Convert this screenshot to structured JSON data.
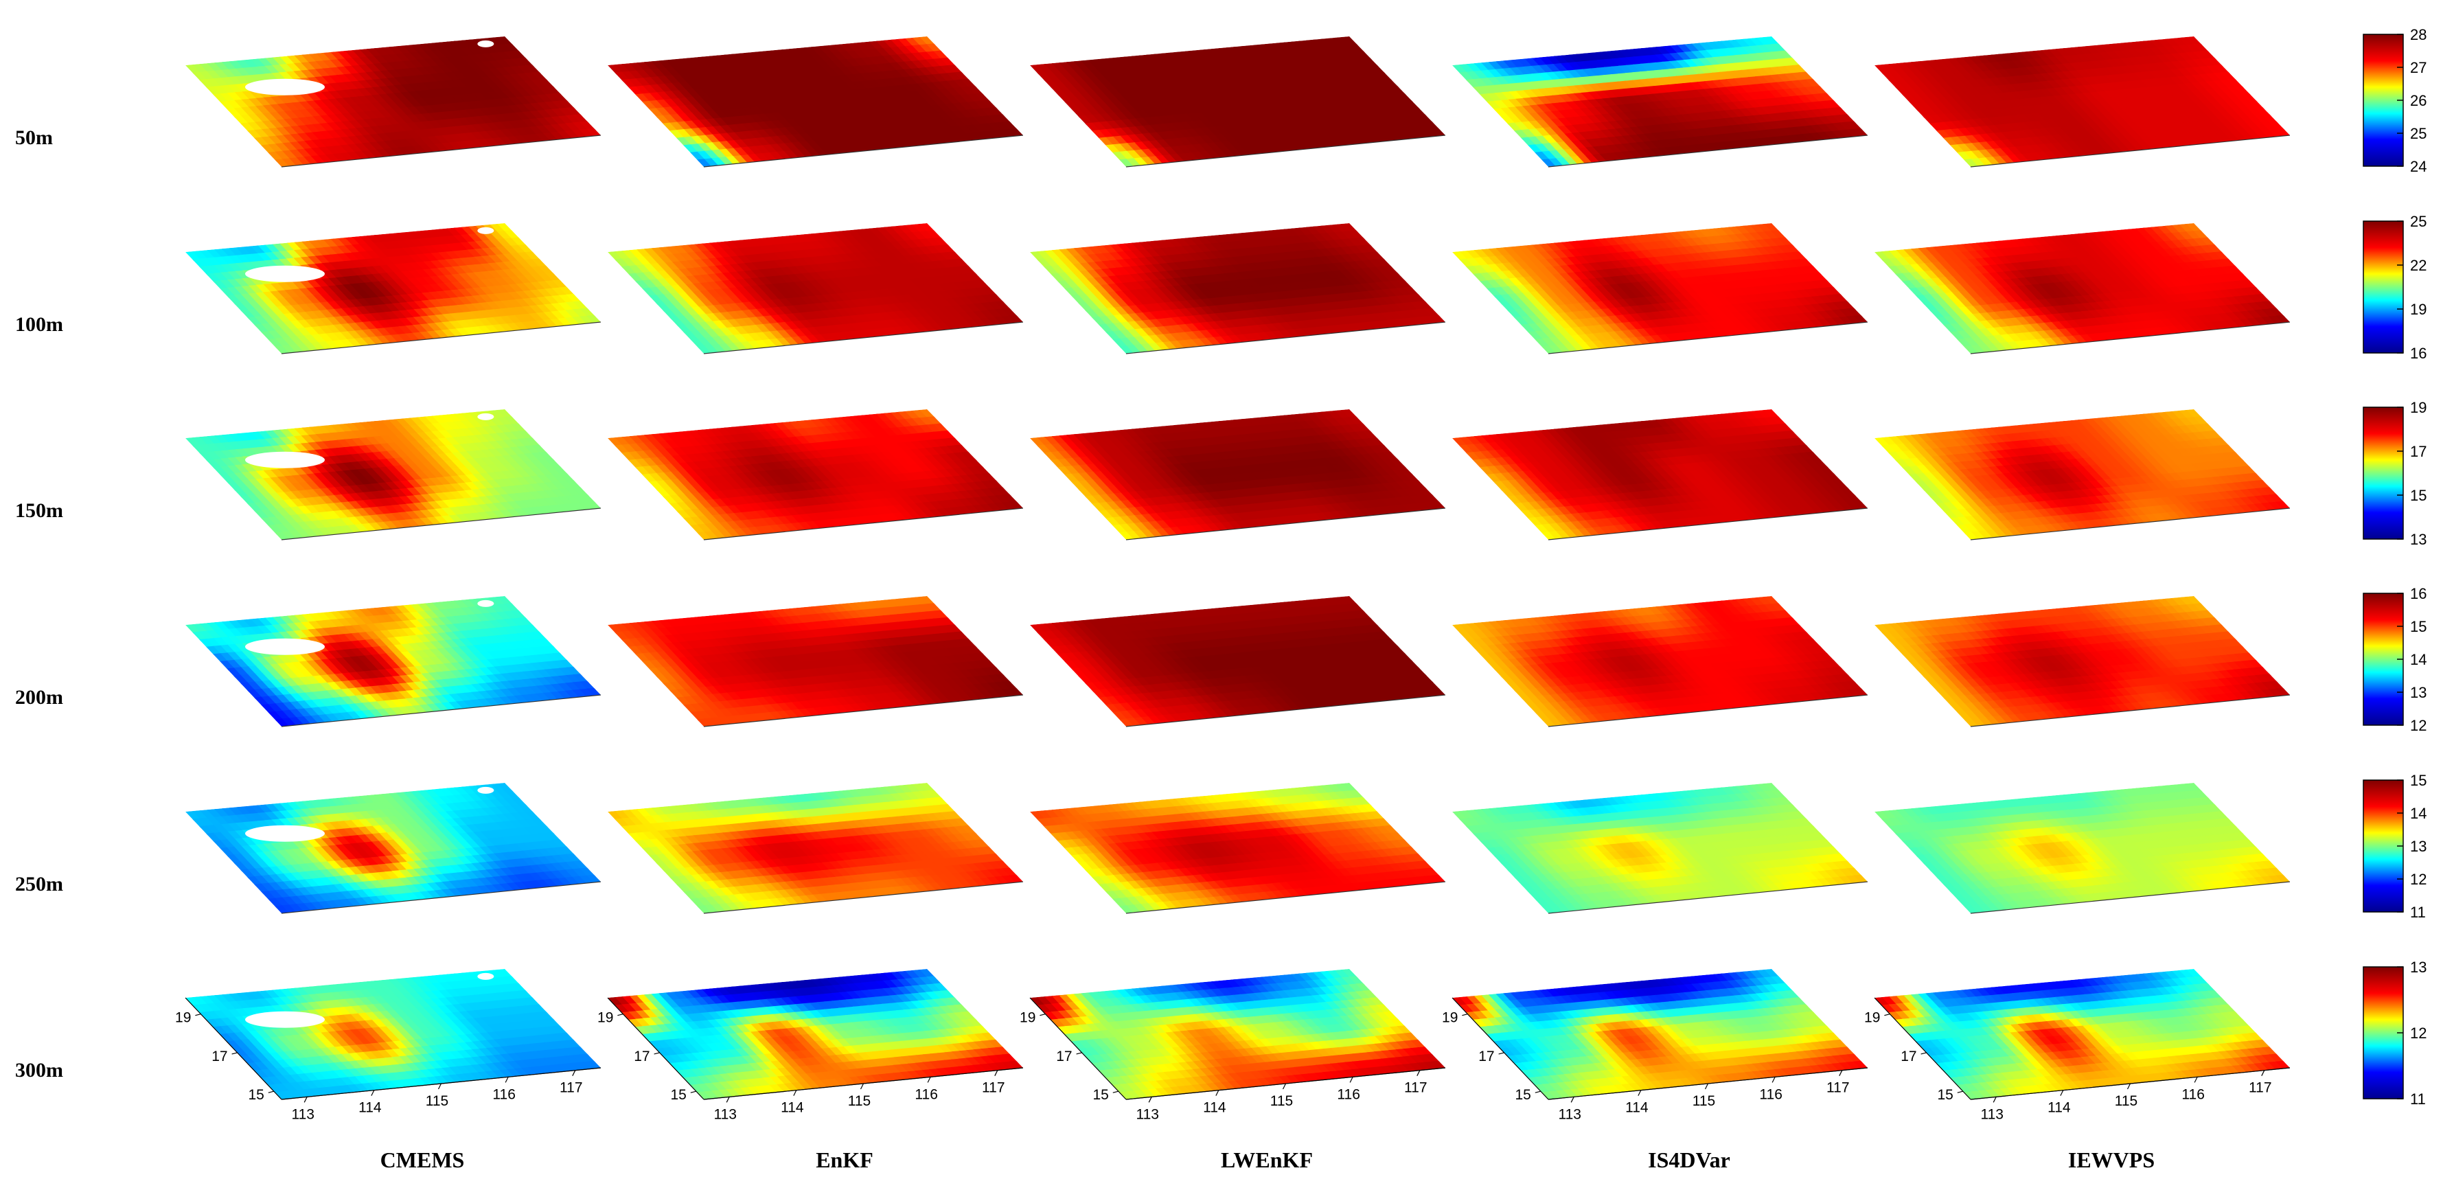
{
  "chart_data": {
    "type": "heatmap",
    "title": "",
    "methods": [
      "CMEMS",
      "EnKF",
      "LWEnKF",
      "IS4DVar",
      "IEWVPS"
    ],
    "depths": [
      "50m",
      "100m",
      "150m",
      "200m",
      "250m",
      "300m"
    ],
    "x_ticks": [
      "113",
      "114",
      "115",
      "116",
      "117"
    ],
    "y_ticks": [
      "15",
      "17",
      "19"
    ],
    "colormap": [
      "#00008f",
      "#0000ff",
      "#00ffff",
      "#ffff00",
      "#ff0000",
      "#800000"
    ],
    "land_color": "#ffffff",
    "colorbars": [
      {
        "depth": "50m",
        "min": 24,
        "max": 28,
        "ticks": [
          "24",
          "25",
          "26",
          "27",
          "28"
        ]
      },
      {
        "depth": "100m",
        "min": 16,
        "max": 25,
        "ticks": [
          "16",
          "19",
          "22",
          "25"
        ]
      },
      {
        "depth": "150m",
        "min": 13,
        "max": 19,
        "ticks": [
          "13",
          "15",
          "17",
          "19"
        ]
      },
      {
        "depth": "200m",
        "min": 12,
        "max": 16,
        "ticks": [
          "12",
          "13",
          "14",
          "15",
          "16"
        ]
      },
      {
        "depth": "250m",
        "min": 11,
        "max": 15,
        "ticks": [
          "11",
          "12",
          "13",
          "14",
          "15"
        ]
      },
      {
        "depth": "300m",
        "min": 11,
        "max": 13,
        "ticks": [
          "11",
          "12",
          "13"
        ]
      }
    ],
    "fields": {
      "50m": {
        "CMEMS": [
          [
            0.55,
            0.45,
            0.7,
            0.95,
            1.0,
            1.0
          ],
          [
            0.6,
            0.75,
            0.9,
            1.0,
            1.0,
            0.95
          ],
          [
            0.7,
            0.85,
            0.95,
            0.9,
            0.95,
            0.85
          ]
        ],
        "EnKF": [
          [
            0.9,
            1.0,
            1.0,
            1.0,
            0.95,
            0.7
          ],
          [
            0.7,
            1.0,
            1.0,
            1.0,
            1.0,
            0.95
          ],
          [
            0.3,
            0.85,
            1.0,
            1.0,
            1.0,
            1.0
          ]
        ],
        "LWEnKF": [
          [
            0.9,
            1.0,
            1.0,
            1.0,
            1.0,
            1.0
          ],
          [
            0.9,
            1.0,
            1.0,
            1.0,
            1.0,
            1.0
          ],
          [
            0.5,
            0.95,
            1.0,
            1.0,
            1.0,
            1.0
          ]
        ],
        "IS4DVar": [
          [
            0.45,
            0.25,
            0.05,
            0.1,
            0.35,
            0.4
          ],
          [
            0.6,
            0.8,
            0.95,
            0.9,
            0.8,
            0.75
          ],
          [
            0.3,
            0.95,
            1.0,
            1.0,
            1.0,
            0.95
          ]
        ],
        "IEWVPS": [
          [
            0.85,
            0.9,
            0.97,
            0.9,
            0.88,
            0.85
          ],
          [
            0.85,
            0.9,
            0.9,
            0.85,
            0.85,
            0.8
          ],
          [
            0.55,
            0.85,
            0.9,
            0.85,
            0.85,
            0.8
          ]
        ]
      },
      "100m": {
        "CMEMS": [
          [
            0.4,
            0.35,
            0.7,
            0.85,
            0.85,
            0.6
          ],
          [
            0.45,
            0.7,
            1.0,
            0.8,
            0.7,
            0.65
          ],
          [
            0.5,
            0.6,
            0.75,
            0.6,
            0.65,
            0.55
          ]
        ],
        "EnKF": [
          [
            0.55,
            0.7,
            0.85,
            0.85,
            0.9,
            0.8
          ],
          [
            0.45,
            0.75,
            0.95,
            0.9,
            0.9,
            0.9
          ],
          [
            0.45,
            0.6,
            0.85,
            0.85,
            0.9,
            0.95
          ]
        ],
        "LWEnKF": [
          [
            0.55,
            0.75,
            0.9,
            0.95,
            0.95,
            0.9
          ],
          [
            0.5,
            0.85,
            1.0,
            1.0,
            1.0,
            0.95
          ],
          [
            0.45,
            0.7,
            0.85,
            0.9,
            0.9,
            0.9
          ]
        ],
        "IS4DVar": [
          [
            0.6,
            0.7,
            0.8,
            0.75,
            0.7,
            0.75
          ],
          [
            0.45,
            0.7,
            0.95,
            0.8,
            0.8,
            0.8
          ],
          [
            0.5,
            0.65,
            0.8,
            0.8,
            0.85,
            0.95
          ]
        ],
        "IEWVPS": [
          [
            0.55,
            0.75,
            0.8,
            0.85,
            0.8,
            0.7
          ],
          [
            0.45,
            0.75,
            0.95,
            0.85,
            0.8,
            0.8
          ],
          [
            0.5,
            0.6,
            0.8,
            0.8,
            0.85,
            0.95
          ]
        ]
      },
      "150m": {
        "CMEMS": [
          [
            0.45,
            0.4,
            0.65,
            0.7,
            0.6,
            0.55
          ],
          [
            0.45,
            0.7,
            1.0,
            0.7,
            0.55,
            0.5
          ],
          [
            0.5,
            0.55,
            0.7,
            0.55,
            0.5,
            0.5
          ]
        ],
        "EnKF": [
          [
            0.7,
            0.8,
            0.85,
            0.75,
            0.8,
            0.7
          ],
          [
            0.6,
            0.85,
            0.95,
            0.85,
            0.8,
            0.9
          ],
          [
            0.65,
            0.75,
            0.8,
            0.8,
            0.9,
            0.95
          ]
        ],
        "LWEnKF": [
          [
            0.7,
            0.9,
            0.95,
            0.95,
            0.95,
            0.9
          ],
          [
            0.65,
            0.9,
            1.0,
            1.0,
            1.0,
            0.95
          ],
          [
            0.6,
            0.8,
            0.9,
            0.9,
            0.95,
            0.95
          ]
        ],
        "IS4DVar": [
          [
            0.75,
            0.85,
            0.95,
            0.95,
            0.85,
            0.8
          ],
          [
            0.65,
            0.85,
            0.95,
            0.85,
            0.9,
            0.95
          ],
          [
            0.6,
            0.75,
            0.85,
            0.85,
            0.9,
            0.95
          ]
        ],
        "IEWVPS": [
          [
            0.6,
            0.7,
            0.75,
            0.75,
            0.7,
            0.65
          ],
          [
            0.55,
            0.75,
            0.9,
            0.75,
            0.7,
            0.7
          ],
          [
            0.6,
            0.7,
            0.75,
            0.7,
            0.75,
            0.8
          ]
        ]
      },
      "200m": {
        "CMEMS": [
          [
            0.45,
            0.35,
            0.6,
            0.7,
            0.5,
            0.45
          ],
          [
            0.25,
            0.6,
            0.95,
            0.55,
            0.4,
            0.4
          ],
          [
            0.2,
            0.35,
            0.55,
            0.35,
            0.3,
            0.25
          ]
        ],
        "EnKF": [
          [
            0.75,
            0.8,
            0.8,
            0.75,
            0.7,
            0.7
          ],
          [
            0.7,
            0.85,
            0.9,
            0.9,
            0.95,
            0.95
          ],
          [
            0.75,
            0.75,
            0.8,
            0.85,
            0.95,
            1.0
          ]
        ],
        "LWEnKF": [
          [
            0.85,
            0.95,
            0.95,
            0.95,
            0.95,
            0.95
          ],
          [
            0.8,
            0.95,
            1.0,
            1.0,
            1.0,
            1.0
          ],
          [
            0.75,
            0.85,
            0.95,
            1.0,
            1.0,
            1.0
          ]
        ],
        "IS4DVar": [
          [
            0.65,
            0.7,
            0.75,
            0.7,
            0.8,
            0.75
          ],
          [
            0.65,
            0.8,
            0.9,
            0.8,
            0.8,
            0.85
          ],
          [
            0.65,
            0.75,
            0.8,
            0.8,
            0.85,
            0.9
          ]
        ],
        "IEWVPS": [
          [
            0.65,
            0.7,
            0.75,
            0.75,
            0.7,
            0.65
          ],
          [
            0.65,
            0.8,
            0.9,
            0.8,
            0.75,
            0.75
          ],
          [
            0.65,
            0.75,
            0.8,
            0.75,
            0.8,
            0.9
          ]
        ]
      },
      "250m": {
        "CMEMS": [
          [
            0.35,
            0.3,
            0.45,
            0.5,
            0.4,
            0.35
          ],
          [
            0.3,
            0.5,
            0.85,
            0.5,
            0.35,
            0.35
          ],
          [
            0.25,
            0.3,
            0.4,
            0.3,
            0.25,
            0.3
          ]
        ],
        "EnKF": [
          [
            0.65,
            0.55,
            0.5,
            0.45,
            0.5,
            0.55
          ],
          [
            0.55,
            0.75,
            0.85,
            0.8,
            0.75,
            0.7
          ],
          [
            0.5,
            0.6,
            0.7,
            0.7,
            0.75,
            0.8
          ]
        ],
        "LWEnKF": [
          [
            0.75,
            0.7,
            0.65,
            0.6,
            0.55,
            0.5
          ],
          [
            0.6,
            0.8,
            0.9,
            0.85,
            0.75,
            0.7
          ],
          [
            0.5,
            0.65,
            0.75,
            0.8,
            0.8,
            0.8
          ]
        ],
        "IS4DVar": [
          [
            0.5,
            0.45,
            0.35,
            0.4,
            0.45,
            0.5
          ],
          [
            0.45,
            0.55,
            0.65,
            0.55,
            0.55,
            0.55
          ],
          [
            0.45,
            0.5,
            0.55,
            0.55,
            0.6,
            0.65
          ]
        ],
        "IEWVPS": [
          [
            0.5,
            0.45,
            0.45,
            0.45,
            0.5,
            0.5
          ],
          [
            0.45,
            0.55,
            0.65,
            0.55,
            0.55,
            0.55
          ],
          [
            0.45,
            0.5,
            0.55,
            0.55,
            0.6,
            0.65
          ]
        ]
      },
      "300m": {
        "CMEMS": [
          [
            0.4,
            0.35,
            0.45,
            0.45,
            0.4,
            0.4
          ],
          [
            0.3,
            0.5,
            0.75,
            0.45,
            0.35,
            0.35
          ],
          [
            0.35,
            0.35,
            0.4,
            0.35,
            0.3,
            0.3
          ]
        ],
        "EnKF": [
          [
            0.95,
            0.3,
            0.1,
            0.05,
            0.15,
            0.3
          ],
          [
            0.35,
            0.4,
            0.75,
            0.5,
            0.45,
            0.55
          ],
          [
            0.5,
            0.6,
            0.7,
            0.75,
            0.8,
            0.85
          ]
        ],
        "LWEnKF": [
          [
            0.95,
            0.45,
            0.3,
            0.2,
            0.3,
            0.45
          ],
          [
            0.45,
            0.55,
            0.7,
            0.55,
            0.45,
            0.6
          ],
          [
            0.55,
            0.65,
            0.75,
            0.8,
            0.85,
            0.9
          ]
        ],
        "IS4DVar": [
          [
            0.85,
            0.25,
            0.15,
            0.1,
            0.2,
            0.35
          ],
          [
            0.35,
            0.45,
            0.75,
            0.55,
            0.5,
            0.55
          ],
          [
            0.5,
            0.6,
            0.65,
            0.7,
            0.75,
            0.8
          ]
        ],
        "IEWVPS": [
          [
            0.85,
            0.3,
            0.2,
            0.2,
            0.3,
            0.4
          ],
          [
            0.35,
            0.45,
            0.8,
            0.55,
            0.5,
            0.55
          ],
          [
            0.5,
            0.6,
            0.65,
            0.65,
            0.7,
            0.8
          ]
        ]
      }
    }
  }
}
